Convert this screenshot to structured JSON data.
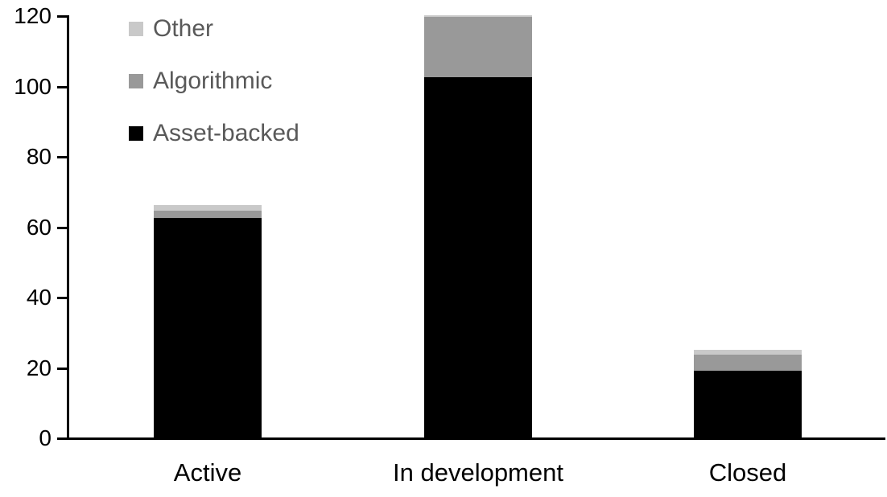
{
  "chart_data": {
    "type": "bar",
    "stacked": true,
    "title": "",
    "xlabel": "",
    "ylabel": "",
    "categories": [
      "Active",
      "In development",
      "Closed"
    ],
    "series": [
      {
        "name": "Asset-backed",
        "color": "#000000",
        "values": [
          62.5,
          102.5,
          19
        ]
      },
      {
        "name": "Algorithmic",
        "color": "#999999",
        "values": [
          2,
          17,
          4.5
        ]
      },
      {
        "name": "Other",
        "color": "#c9c9c9",
        "values": [
          1.5,
          0.5,
          1.5
        ]
      }
    ],
    "totals": [
      66,
      120,
      25
    ],
    "ylim": [
      0,
      120
    ],
    "yticks": [
      0,
      20,
      40,
      60,
      80,
      100,
      120
    ],
    "grid": false,
    "legend_position": "top-left",
    "legend_order": [
      "Other",
      "Algorithmic",
      "Asset-backed"
    ],
    "legend_text_color": "#595959",
    "axis_color": "#000000",
    "background_color": "#ffffff"
  }
}
